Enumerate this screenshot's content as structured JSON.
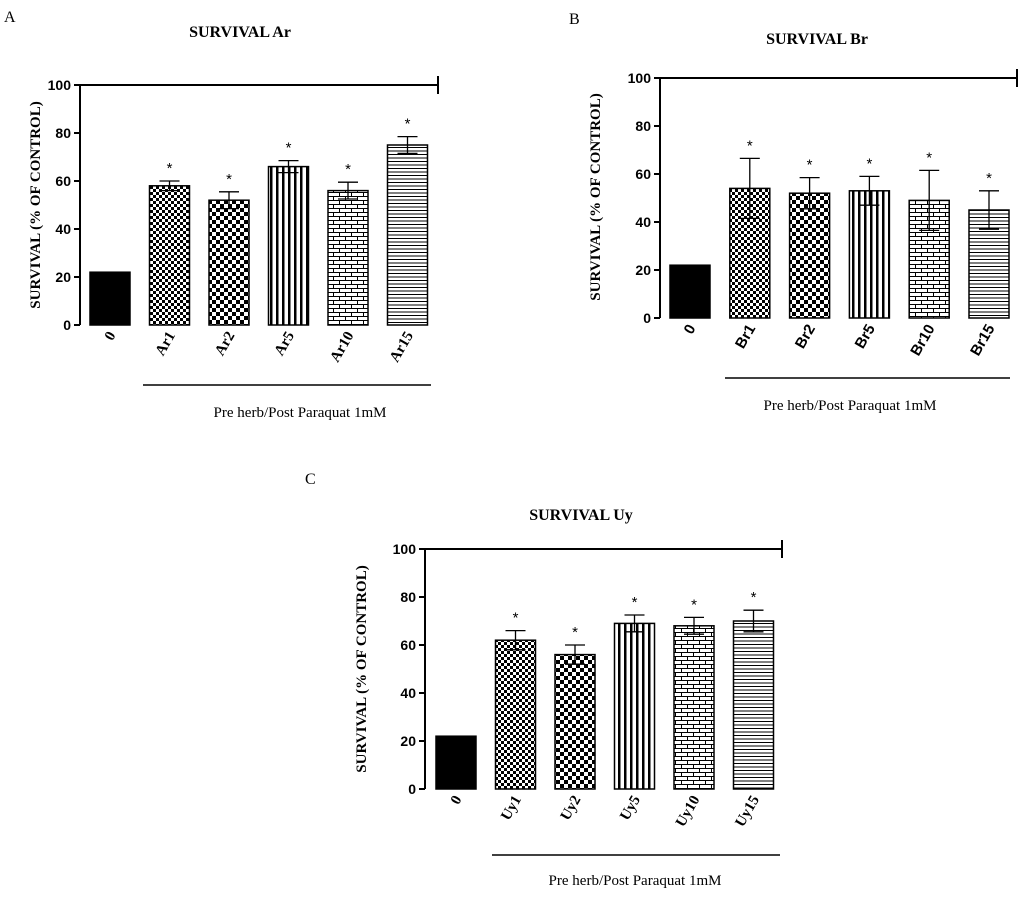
{
  "panels": [
    {
      "letter": "A",
      "chart_data": {
        "type": "bar",
        "title": "SURVIVAL Ar",
        "ylabel": "SURVIVAL (% OF CONTROL)",
        "group_label": "Pre herb/Post Paraquat 1mM",
        "ylim": [
          0,
          100
        ],
        "yticks": [
          "0",
          "20",
          "40",
          "60",
          "80",
          "100"
        ],
        "categories": [
          "0",
          "Ar1",
          "Ar2",
          "Ar5",
          "Ar10",
          "Ar15"
        ],
        "values": [
          22,
          58,
          52,
          66,
          56,
          75
        ],
        "errors": [
          0.5,
          2,
          3.5,
          2.5,
          3.5,
          3.5
        ],
        "significance": [
          "",
          "*",
          "*",
          "*",
          "*",
          "*"
        ],
        "patterns": [
          "solid",
          "checker-fine",
          "checker-coarse",
          "vertical",
          "brick",
          "horizontal"
        ],
        "reference_line": 100
      }
    },
    {
      "letter": "B",
      "chart_data": {
        "type": "bar",
        "title": "SURVIVAL Br",
        "ylabel": "SURVIVAL (% OF CONTROL)",
        "group_label": "Pre herb/Post Paraquat 1mM",
        "ylim": [
          0,
          100
        ],
        "yticks": [
          "0",
          "20",
          "40",
          "60",
          "80",
          "100"
        ],
        "categories": [
          "0",
          "Br1",
          "Br2",
          "Br5",
          "Br10",
          "Br15"
        ],
        "values": [
          22,
          54,
          52,
          53,
          49,
          45
        ],
        "errors": [
          0.5,
          12.5,
          6.5,
          6,
          12.5,
          8
        ],
        "significance": [
          "",
          "*",
          "*",
          "*",
          "*",
          "*"
        ],
        "patterns": [
          "solid",
          "checker-fine",
          "checker-coarse",
          "vertical",
          "brick",
          "horizontal"
        ],
        "reference_line": 100
      }
    },
    {
      "letter": "C",
      "chart_data": {
        "type": "bar",
        "title": "SURVIVAL Uy",
        "ylabel": "SURVIVAL (% OF CONTROL)",
        "group_label": "Pre herb/Post Paraquat 1mM",
        "ylim": [
          0,
          100
        ],
        "yticks": [
          "0",
          "20",
          "40",
          "60",
          "80",
          "100"
        ],
        "categories": [
          "0",
          "Uy1",
          "Uy2",
          "Uy5",
          "Uy10",
          "Uy15"
        ],
        "values": [
          22,
          62,
          56,
          69,
          68,
          70
        ],
        "errors": [
          0.5,
          4,
          4,
          3.5,
          3.5,
          4.5
        ],
        "significance": [
          "",
          "*",
          "*",
          "*",
          "*",
          "*"
        ],
        "patterns": [
          "solid",
          "checker-fine",
          "checker-coarse",
          "vertical",
          "brick",
          "horizontal"
        ],
        "reference_line": 100
      }
    }
  ]
}
